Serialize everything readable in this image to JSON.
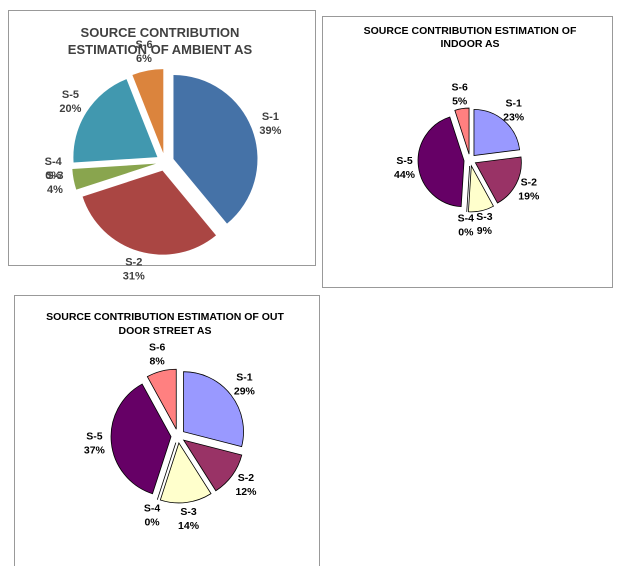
{
  "chart_data": [
    {
      "type": "pie",
      "title": "SOURCE CONTRIBUTION ESTIMATION OF AMBIENT AS",
      "categories": [
        "S-1",
        "S-2",
        "S-3",
        "S-4",
        "S-5",
        "S-6"
      ],
      "values": [
        39,
        31,
        4,
        0,
        20,
        6
      ],
      "value_labels": [
        "39%",
        "31%",
        "4%",
        "0%",
        "20%",
        "6%"
      ],
      "colors": [
        "#4572a7",
        "#aa4643",
        "#89a54e",
        "#71588f",
        "#4198af",
        "#db843d"
      ]
    },
    {
      "type": "pie",
      "title": "SOURCE CONTRIBUTION ESTIMATION OF INDOOR AS",
      "categories": [
        "S-1",
        "S-2",
        "S-3",
        "S-4",
        "S-5",
        "S-6"
      ],
      "values": [
        23,
        19,
        9,
        0,
        44,
        5
      ],
      "value_labels": [
        "23%",
        "19%",
        "9%",
        "0%",
        "44%",
        "5%"
      ],
      "colors": [
        "#9999ff",
        "#993366",
        "#ffffcc",
        "#ccffff",
        "#660066",
        "#ff8080"
      ]
    },
    {
      "type": "pie",
      "title": "SOURCE CONTRIBUTION ESTIMATION OF OUT DOOR STREET AS",
      "categories": [
        "S-1",
        "S-2",
        "S-3",
        "S-4",
        "S-5",
        "S-6"
      ],
      "values": [
        29,
        12,
        14,
        0,
        37,
        8
      ],
      "value_labels": [
        "29%",
        "12%",
        "14%",
        "0%",
        "37%",
        "8%"
      ],
      "colors": [
        "#9999ff",
        "#993366",
        "#ffffcc",
        "#ccffff",
        "#660066",
        "#ff8080"
      ]
    }
  ]
}
